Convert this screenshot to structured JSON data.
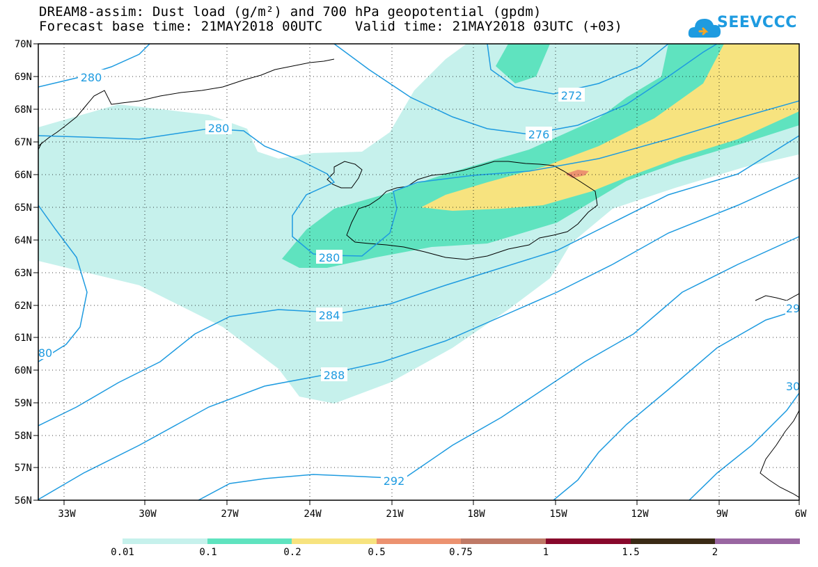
{
  "header": {
    "line1": "DREAM8-assim: Dust load (g/m²) and 700 hPa geopotential (gpdm)",
    "line2": "Forecast base time: 21MAY2018 00UTC    Valid time: 21MAY2018 03UTC (+03)"
  },
  "logo": {
    "text": "SEEVCCC",
    "icon": "cloud-logo-icon"
  },
  "axes": {
    "lat_labels": [
      "70N",
      "69N",
      "68N",
      "67N",
      "66N",
      "65N",
      "64N",
      "63N",
      "62N",
      "61N",
      "60N",
      "59N",
      "58N",
      "57N",
      "56N"
    ],
    "lon_labels": [
      "33W",
      "30W",
      "27W",
      "24W",
      "21W",
      "18W",
      "15W",
      "12W",
      "9W",
      "6W"
    ]
  },
  "contours": {
    "labels": [
      "280",
      "280",
      "272",
      "276",
      "280",
      "284",
      "288",
      "292",
      "80",
      "29",
      "30"
    ]
  },
  "colorbar": {
    "colors": [
      "#c6f1ec",
      "#5fe3bf",
      "#f7e37f",
      "#ec9270",
      "#bf7a67",
      "#88082c",
      "#3a2a15",
      "#9966a1"
    ],
    "labels": [
      "0.01",
      "0.1",
      "0.2",
      "0.5",
      "0.75",
      "1",
      "1.5",
      "2"
    ]
  }
}
